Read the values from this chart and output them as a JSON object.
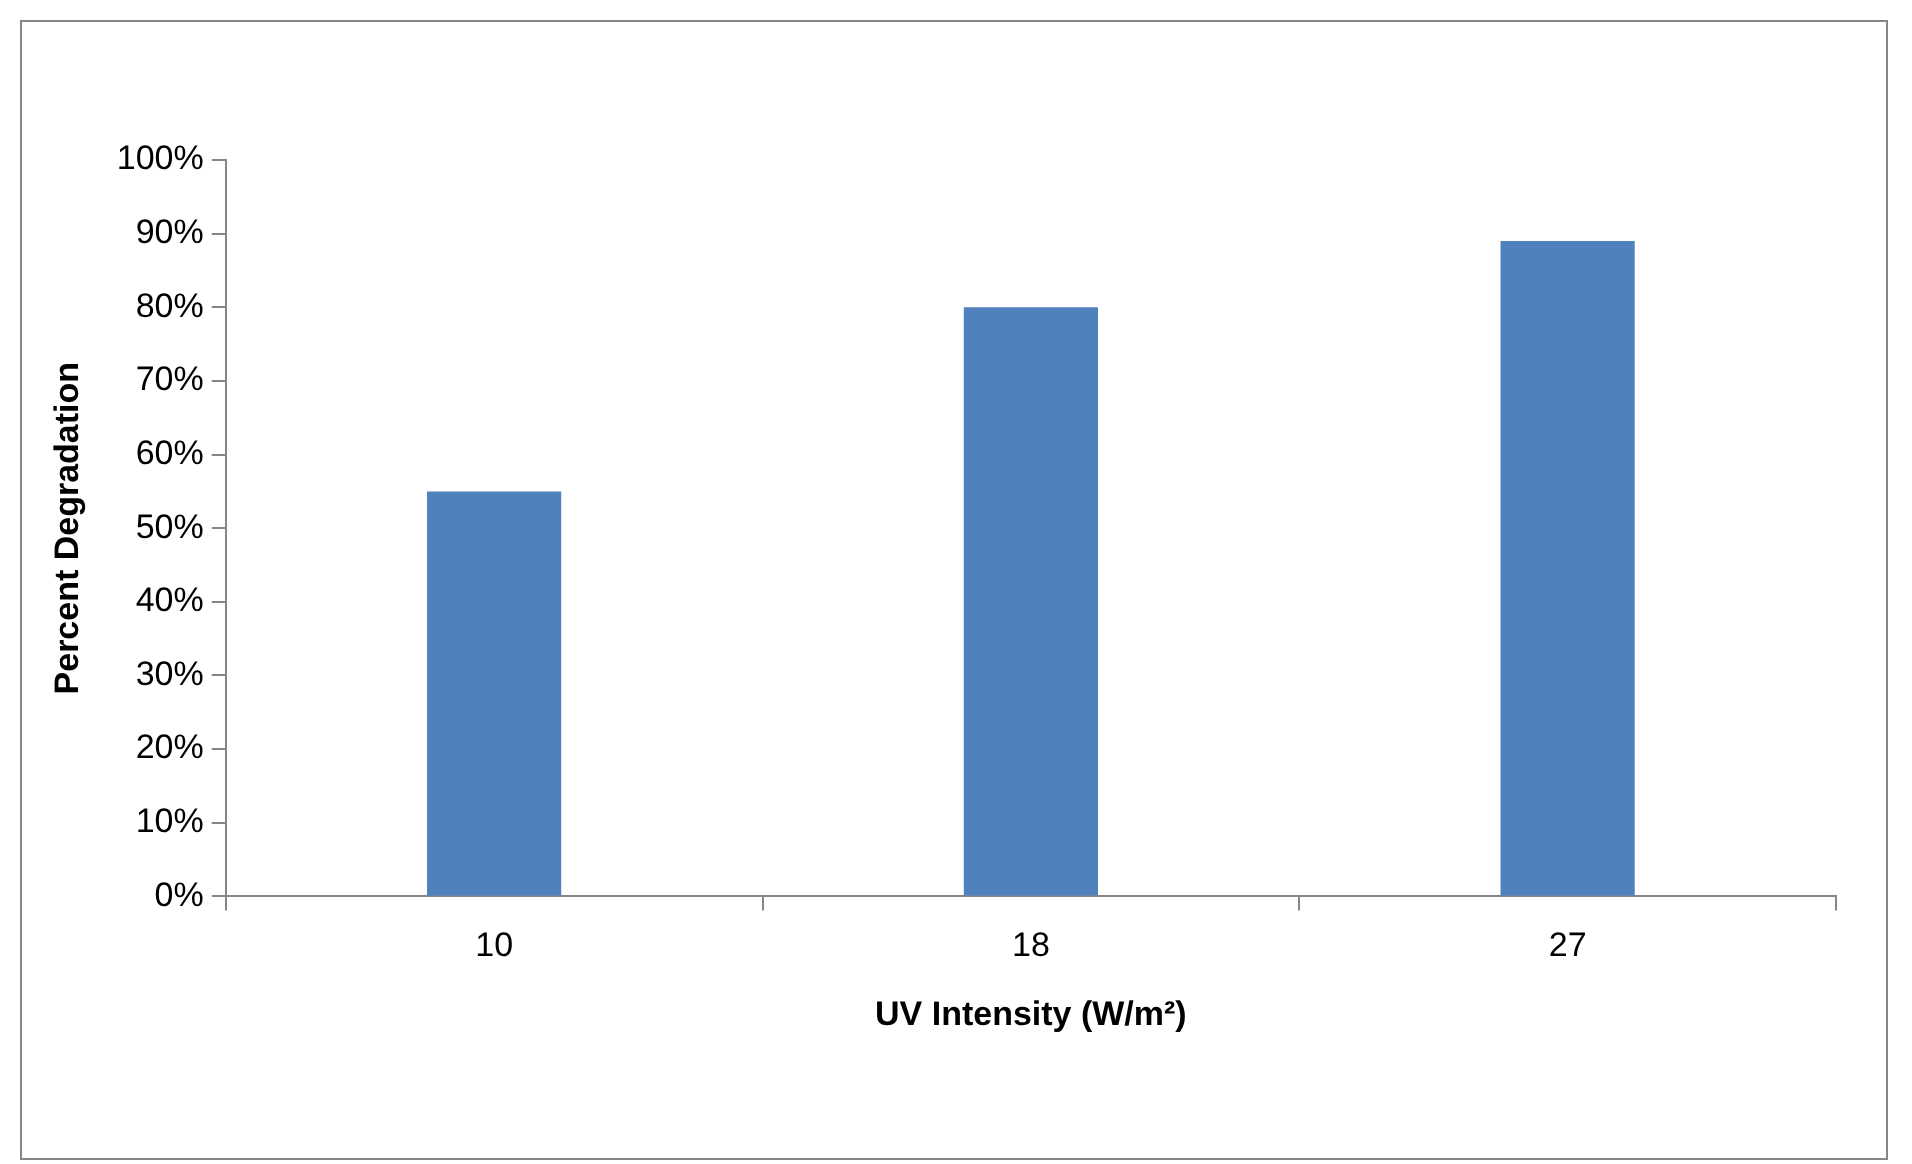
{
  "chart_data": {
    "type": "bar",
    "xlabel": "UV Intensity (W/m²)",
    "ylabel": "Percent Degradation",
    "categories": [
      "10",
      "18",
      "27"
    ],
    "values": [
      55,
      80,
      89
    ],
    "color": "#4f81bd",
    "ylim": [
      0,
      100
    ],
    "yticks": [
      {
        "value": 0,
        "label": "0%"
      },
      {
        "value": 10,
        "label": "10%"
      },
      {
        "value": 20,
        "label": "20%"
      },
      {
        "value": 30,
        "label": "30%"
      },
      {
        "value": 40,
        "label": "40%"
      },
      {
        "value": 50,
        "label": "50%"
      },
      {
        "value": 60,
        "label": "60%"
      },
      {
        "value": 70,
        "label": "70%"
      },
      {
        "value": 80,
        "label": "80%"
      },
      {
        "value": 90,
        "label": "90%"
      },
      {
        "value": 100,
        "label": "100%"
      }
    ],
    "grid": false,
    "legend": false
  }
}
